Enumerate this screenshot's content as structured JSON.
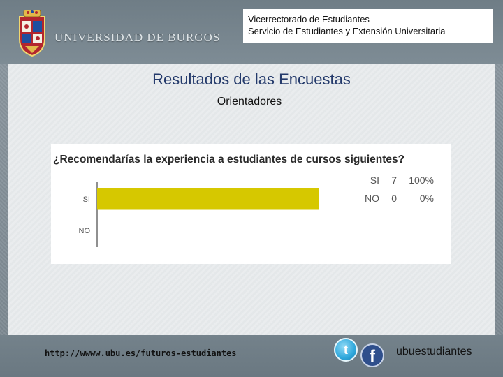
{
  "header": {
    "university_name": "UNIVERSIDAD DE BURGOS",
    "org_line1": "Vicerrectorado de Estudiantes",
    "org_line2": "Servicio de Estudiantes y Extensión Universitaria"
  },
  "main": {
    "title": "Resultados de las Encuestas",
    "subtitle": "Orientadores"
  },
  "chart_data": {
    "type": "bar",
    "orientation": "horizontal",
    "title": "¿Recomendarías la experiencia a estudiantes de cursos siguientes?",
    "categories": [
      "SI",
      "NO"
    ],
    "values": [
      7,
      0
    ],
    "percentages": [
      "100%",
      "0%"
    ],
    "bar_color": "#d6c800",
    "xlim": [
      0,
      7
    ],
    "grid": false,
    "legend": "top-right table"
  },
  "footer": {
    "url": "http://wwww.ubu.es/futuros-estudiantes",
    "social_handle": "ubuestudiantes",
    "twitter_letter": "t",
    "facebook_letter": "f"
  }
}
